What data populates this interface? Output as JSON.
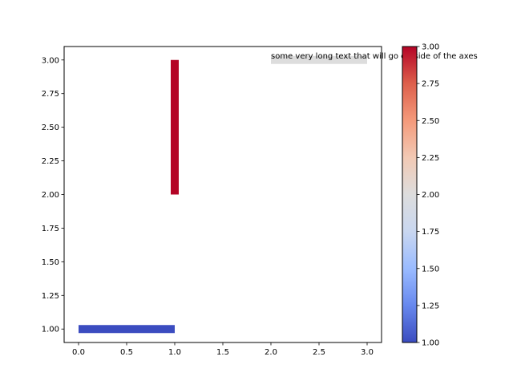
{
  "chart_data": {
    "type": "line",
    "title": "",
    "xlabel": "",
    "ylabel": "",
    "xlim": [
      -0.15,
      3.15
    ],
    "ylim": [
      0.9,
      3.1
    ],
    "grid": false,
    "x_ticks": [
      0.0,
      0.5,
      1.0,
      1.5,
      2.0,
      2.5,
      3.0
    ],
    "x_tick_labels": [
      "0.0",
      "0.5",
      "1.0",
      "1.5",
      "2.0",
      "2.5",
      "3.0"
    ],
    "y_ticks": [
      1.0,
      1.25,
      1.5,
      1.75,
      2.0,
      2.25,
      2.5,
      2.75,
      3.0
    ],
    "y_tick_labels": [
      "1.00",
      "1.25",
      "1.50",
      "1.75",
      "2.00",
      "2.25",
      "2.50",
      "2.75",
      "3.00"
    ],
    "segments": [
      {
        "x": [
          0,
          1
        ],
        "y": [
          1,
          1
        ],
        "value": 1,
        "color": "#3b4cc0"
      },
      {
        "x": [
          1,
          1
        ],
        "y": [
          2,
          3
        ],
        "value": 3,
        "color": "#b40426"
      },
      {
        "x": [
          2,
          3
        ],
        "y": [
          3,
          3
        ],
        "value": 2,
        "color": "#dddddd"
      }
    ],
    "annotation": {
      "text": "some very long text that will go outside of the axes",
      "x": 2,
      "y": 3
    },
    "colorbar": {
      "colormap": "coolwarm",
      "range": [
        1.0,
        3.0
      ],
      "ticks": [
        1.0,
        1.25,
        1.5,
        1.75,
        2.0,
        2.25,
        2.5,
        2.75,
        3.0
      ],
      "tick_labels": [
        "1.00",
        "1.25",
        "1.50",
        "1.75",
        "2.00",
        "2.25",
        "2.50",
        "2.75",
        "3.00"
      ],
      "stops": [
        "#3b4cc0",
        "#6788ee",
        "#9abbff",
        "#c9d7f0",
        "#dddddd",
        "#f2c9b4",
        "#f49a7b",
        "#dd5f4b",
        "#b40426"
      ]
    }
  }
}
